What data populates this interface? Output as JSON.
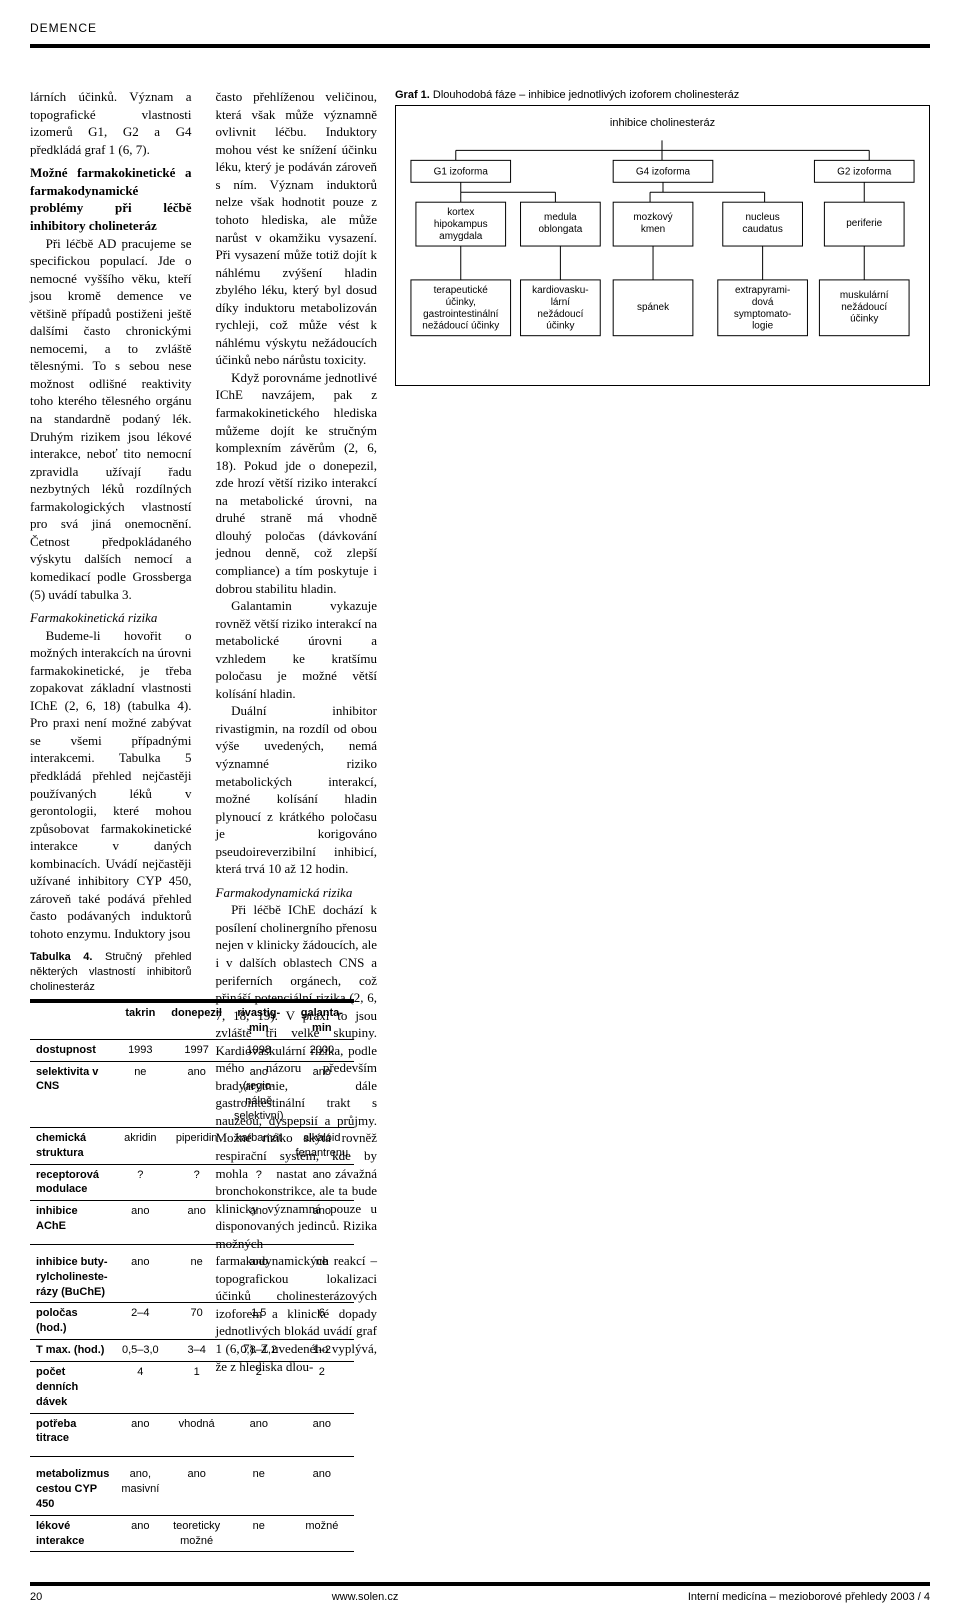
{
  "header": {
    "section_label": "DEMENCE"
  },
  "intro_para": "lárních účinků. Význam a topografické vlastnosti izomerů G1, G2 a G4 předkládá graf 1 (6, 7).",
  "subhead1": "Možné farmakokinetické a farmakodynamické problémy při léčbě inhibitory cholineteráz",
  "para1a": "Při léčbě AD pracujeme se specifickou populací. Jde o nemocné vyššího věku, kteří jsou kromě demence ve většině případů postiženi ještě dalšími často chronickými nemocemi, a to zvláště tělesnými. To s sebou nese možnost odlišné reaktivity toho kterého tělesného orgánu na standardně podaný lék. Druhým rizikem jsou lékové interakce, neboť tito nemocní zpravidla užívají řadu nezbytných léků rozdílných farmakologických vlastností pro svá jiná onemocnění. Četnost předpokládaného výskytu dalších nemocí a komedikací podle Grossberga (5) uvádí tabulka 3.",
  "subhead2": "Farmakokinetická rizika",
  "para2": "Budeme-li hovořit o možných interakcích na úrovni farmakokinetické, je třeba zopakovat základní vlastnosti IChE (2, 6, 18) (tabulka 4). Pro praxi není možné zabývat se všemi případnými interakcemi. Tabulka 5 předkládá přehled nejčastěji používaných léků v gerontologii, které mohou způsobovat farmakokinetické interakce v daných kombinacích. Uvádí nejčastěji užívané inhibitory CYP 450, zároveň také podává přehled často podávaných induktorů tohoto enzymu. Induktory jsou",
  "para_right1": "často přehlíženou veličinou, která však může významně ovlivnit léčbu. Induktory mohou vést ke snížení účinku léku, který je podáván zároveň s ním. Význam induktorů nelze však hodnotit pouze z tohoto hlediska, ale může narůst v okamžiku vysazení. Při vysazení může totiž dojít k náhlému zvýšení hladin zbylého léku, který byl dosud díky induktoru metabolizován rychleji, což může vést k náhlému výskytu nežádoucích účinků nebo nárůstu toxicity.",
  "para_right2": "Když porovnáme jednotlivé IChE navzájem, pak z farmakokinetického hlediska můžeme dojít ke stručným komplexním závěrům (2, 6, 18). Pokud jde o donepezil, zde hrozí větší riziko interakcí na metabolické úrovni, na druhé straně má vhodně dlouhý poločas (dávkování jednou denně, což zlepší compliance) a tím poskytuje i dobrou stabilitu hladin.",
  "para_right3": "Galantamin vykazuje rovněž větší riziko interakcí na metabolické úrovni a vzhledem ke kratšímu poločasu je možné větší kolísání hladin.",
  "para_right4": "Duální inhibitor rivastigmin, na rozdíl od obou výše uvedených, nemá významné riziko metabolických interakcí, možné kolísání hladin plynoucí z krátkého poločasu je korigováno pseudoireverzibilní inhibicí, která trvá 10 až 12 hodin.",
  "subhead3": "Farmakodynamická rizika",
  "para_right5": "Při léčbě IChE dochází k posílení cholinergního přenosu nejen v klinicky žádoucích, ale i v dalších oblastech CNS a periferních orgánech, což přináší potenciální rizika (2, 6, 7, 18, 19). V praxi to jsou zvláště tři velké skupiny. Kardiovaskulární rizika, podle mého názoru především bradyarytmie, dále gastrointestinální trakt s nauzeou, dyspepsií a průjmy. Možné riziko skýtá rovněž respirační systém, kde by mohla nastat závažná bronchokonstrikce, ale ta bude klinicky významná pouze u disponovaných jedinců. Rizika možných farmakodynamických reakcí – topografickou lokalizaci účinků cholinesterázových izoforem a klinické dopady jednotlivých blokád uvádí graf 1 (6, 7). Z uvedeného vyplývá, že z hlediska dlou-",
  "figure": {
    "caption_prefix": "Graf 1.",
    "caption_text": "Dlouhodobá fáze – inhibice jednotlivých izoforem cholinesteráz",
    "top_label": "inhibice cholinesteráz",
    "row1": [
      "G1 izoforma",
      "G4 izoforma",
      "G2 izoforma"
    ],
    "row2": [
      [
        "kortex",
        "hipokampus",
        "amygdala"
      ],
      [
        "medula",
        "oblongata"
      ],
      [
        "mozkový",
        "kmen"
      ],
      [
        "nucleus",
        "caudatus"
      ],
      [
        "periferie"
      ]
    ],
    "row3": [
      [
        "terapeutické",
        "účinky,",
        "gastrointestinální",
        "nežádoucí účinky"
      ],
      [
        "kardiovasku-",
        "lární",
        "nežádoucí",
        "účinky"
      ],
      [
        "spánek"
      ],
      [
        "extrapyrami-",
        "dová",
        "symptomato-",
        "logie"
      ],
      [
        "muskulární",
        "nežádoucí",
        "účinky"
      ]
    ]
  },
  "table4": {
    "caption_prefix": "Tabulka 4.",
    "caption_text": "Stručný přehled některých vlastností inhibitorů cholinesteráz",
    "columns": [
      "",
      "takrin",
      "donepezil",
      "rivastig-\nmin",
      "galanta-\nmin"
    ],
    "rows": [
      [
        "dostupnost",
        "1993",
        "1997",
        "1998",
        "2000"
      ],
      [
        "selektivita v CNS",
        "ne",
        "ano",
        "ano (regio-\nnálně\nselektivní)",
        "ano"
      ],
      [
        "chemická struktura",
        "akridin",
        "piperidin",
        "karbamát",
        "alkaloid\nfenantrenu"
      ],
      [
        "receptorová modulace",
        "?",
        "?",
        "?",
        "ano"
      ],
      [
        "inhibice AChE",
        "ano",
        "ano",
        "ano",
        "ano"
      ],
      [
        "inhibice buty-rylcholineste-rázy (BuChE)",
        "ano",
        "ne",
        "ano",
        "ne"
      ],
      [
        "poločas (hod.)",
        "2–4",
        "70",
        "1,5",
        "6"
      ],
      [
        "T max. (hod.)",
        "0,5–3,0",
        "3–4",
        "0,8–1,2",
        "1–2"
      ],
      [
        "počet denních dávek",
        "4",
        "1",
        "2",
        "2"
      ],
      [
        "potřeba titrace",
        "ano",
        "vhodná",
        "ano",
        "ano"
      ],
      [
        "metabolizmus cestou CYP 450",
        "ano,\nmasivní",
        "ano",
        "ne",
        "ano"
      ],
      [
        "lékové interakce",
        "ano",
        "teoreticky\nmožné",
        "ne",
        "možné"
      ]
    ],
    "section_breaks_after": [
      4,
      9
    ]
  },
  "footer": {
    "page": "20",
    "url": "www.solen.cz",
    "journal": "Interní medicína – mezioborové přehledy 2003 / 4"
  }
}
